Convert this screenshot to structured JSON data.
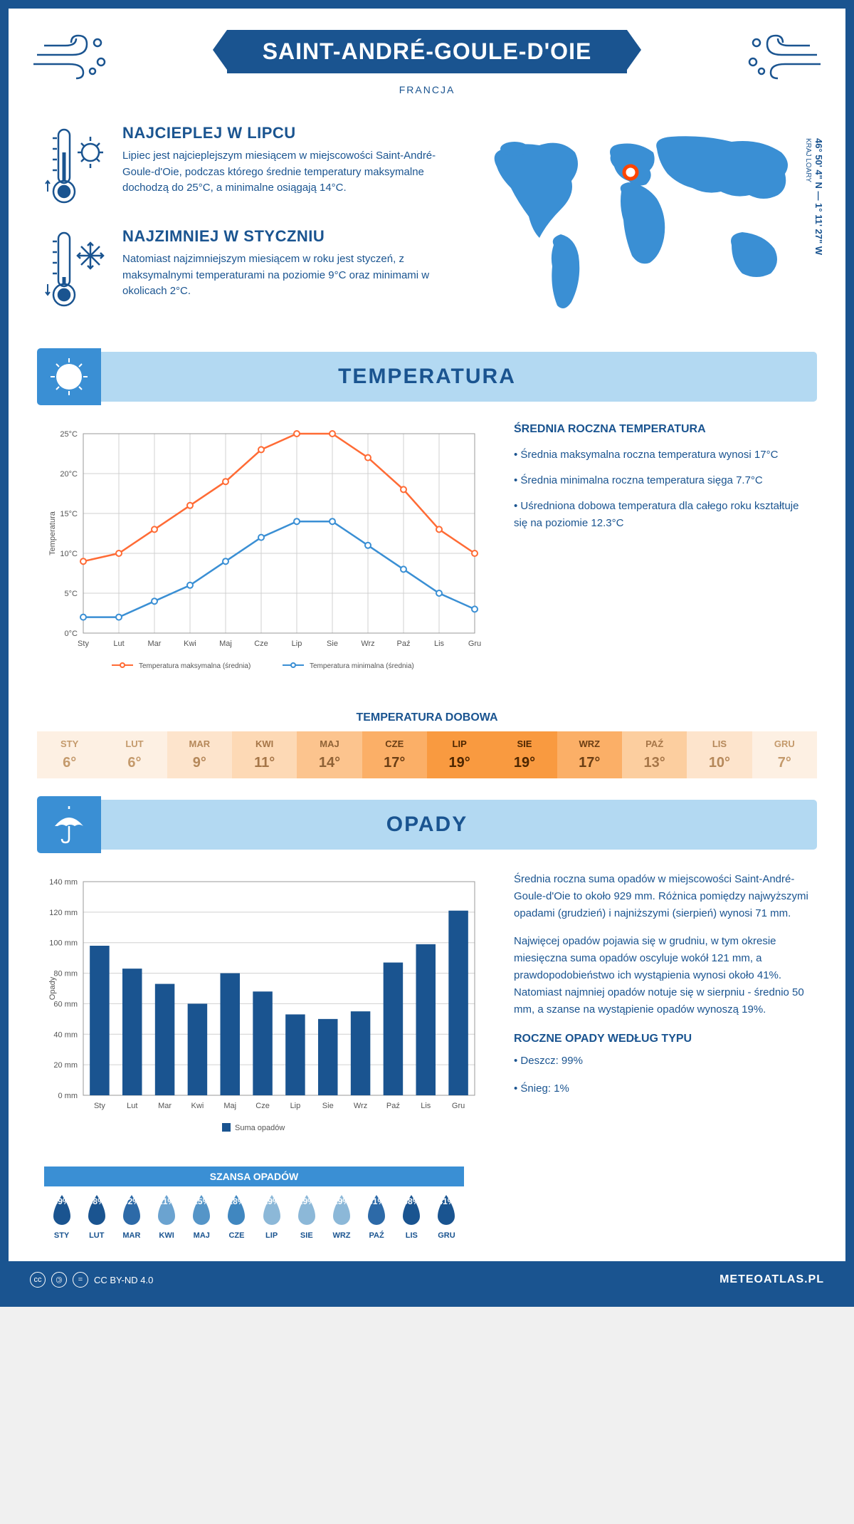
{
  "header": {
    "title": "SAINT-ANDRÉ-GOULE-D'OIE",
    "country": "FRANCJA",
    "coords_main": "46° 50' 4\" N — 1° 11' 27\" W",
    "coords_sub": "KRAJ LOARY"
  },
  "info": {
    "warm": {
      "title": "NAJCIEPLEJ W LIPCU",
      "text": "Lipiec jest najcieplejszym miesiącem w miejscowości Saint-André-Goule-d'Oie, podczas którego średnie temperatury maksymalne dochodzą do 25°C, a minimalne osiągają 14°C."
    },
    "cold": {
      "title": "NAJZIMNIEJ W STYCZNIU",
      "text": "Natomiast najzimniejszym miesiącem w roku jest styczeń, z maksymalnymi temperaturami na poziomie 9°C oraz minimami w okolicach 2°C."
    }
  },
  "temp_section": {
    "header": "TEMPERATURA",
    "chart": {
      "months": [
        "Sty",
        "Lut",
        "Mar",
        "Kwi",
        "Maj",
        "Cze",
        "Lip",
        "Sie",
        "Wrz",
        "Paź",
        "Lis",
        "Gru"
      ],
      "max_series": [
        9,
        10,
        13,
        16,
        19,
        23,
        25,
        25,
        22,
        18,
        13,
        10
      ],
      "min_series": [
        2,
        2,
        4,
        6,
        9,
        12,
        14,
        14,
        11,
        8,
        5,
        3
      ],
      "ylim": [
        0,
        25
      ],
      "ytick_step": 5,
      "ylabel": "Temperatura",
      "max_color": "#ff6b35",
      "min_color": "#3a8fd4",
      "grid_color": "#d0d0d0",
      "legend_max": "Temperatura maksymalna (średnia)",
      "legend_min": "Temperatura minimalna (średnia)"
    },
    "annual": {
      "title": "ŚREDNIA ROCZNA TEMPERATURA",
      "p1": "• Średnia maksymalna roczna temperatura wynosi 17°C",
      "p2": "• Średnia minimalna roczna temperatura sięga 7.7°C",
      "p3": "• Uśredniona dobowa temperatura dla całego roku kształtuje się na poziomie 12.3°C"
    },
    "daily_title": "TEMPERATURA DOBOWA",
    "daily": {
      "months": [
        "STY",
        "LUT",
        "MAR",
        "KWI",
        "MAJ",
        "CZE",
        "LIP",
        "SIE",
        "WRZ",
        "PAŹ",
        "LIS",
        "GRU"
      ],
      "values": [
        "6°",
        "6°",
        "9°",
        "11°",
        "14°",
        "17°",
        "19°",
        "19°",
        "17°",
        "13°",
        "10°",
        "7°"
      ],
      "bg_colors": [
        "#fdf0e3",
        "#fdf0e3",
        "#fde4cc",
        "#fdd9b5",
        "#fcc48e",
        "#fbaf67",
        "#f99a40",
        "#f99a40",
        "#fbaf67",
        "#fcce9f",
        "#fde4cc",
        "#fdf0e3"
      ],
      "text_colors": [
        "#c49a6c",
        "#c49a6c",
        "#b5885a",
        "#a67648",
        "#8f6236",
        "#6b3e14",
        "#4d2600",
        "#4d2600",
        "#6b3e14",
        "#a67648",
        "#b5885a",
        "#c49a6c"
      ]
    }
  },
  "precip_section": {
    "header": "OPADY",
    "chart": {
      "months": [
        "Sty",
        "Lut",
        "Mar",
        "Kwi",
        "Maj",
        "Cze",
        "Lip",
        "Sie",
        "Wrz",
        "Paź",
        "Lis",
        "Gru"
      ],
      "values": [
        98,
        83,
        73,
        60,
        80,
        68,
        53,
        50,
        55,
        87,
        99,
        121
      ],
      "ylim": [
        0,
        140
      ],
      "ytick_step": 20,
      "ylabel": "Opady",
      "bar_color": "#1a5490",
      "grid_color": "#d0d0d0",
      "legend": "Suma opadów"
    },
    "text1": "Średnia roczna suma opadów w miejscowości Saint-André-Goule-d'Oie to około 929 mm. Różnica pomiędzy najwyższymi opadami (grudzień) i najniższymi (sierpień) wynosi 71 mm.",
    "text2": "Najwięcej opadów pojawia się w grudniu, w tym okresie miesięczna suma opadów oscyluje wokół 121 mm, a prawdopodobieństwo ich wystąpienia wynosi około 41%. Natomiast najmniej opadów notuje się w sierpniu - średnio 50 mm, a szanse na wystąpienie opadów wynoszą 19%.",
    "chance_title": "SZANSA OPADÓW",
    "chance": {
      "months": [
        "STY",
        "LUT",
        "MAR",
        "KWI",
        "MAJ",
        "CZE",
        "LIP",
        "SIE",
        "WRZ",
        "PAŹ",
        "LIS",
        "GRU"
      ],
      "pct": [
        "39%",
        "38%",
        "32%",
        "21%",
        "25%",
        "28%",
        "19%",
        "19%",
        "19%",
        "31%",
        "38%",
        "41%"
      ],
      "colors": [
        "#1a5490",
        "#1a5490",
        "#2d6aa8",
        "#6ba3d0",
        "#5595c8",
        "#4087c0",
        "#8cb8d8",
        "#8cb8d8",
        "#8cb8d8",
        "#2d6aa8",
        "#1a5490",
        "#1a5490"
      ]
    },
    "type_title": "ROCZNE OPADY WEDŁUG TYPU",
    "type1": "• Deszcz: 99%",
    "type2": "• Śnieg: 1%"
  },
  "footer": {
    "license": "CC BY-ND 4.0",
    "site": "METEOATLAS.PL"
  }
}
